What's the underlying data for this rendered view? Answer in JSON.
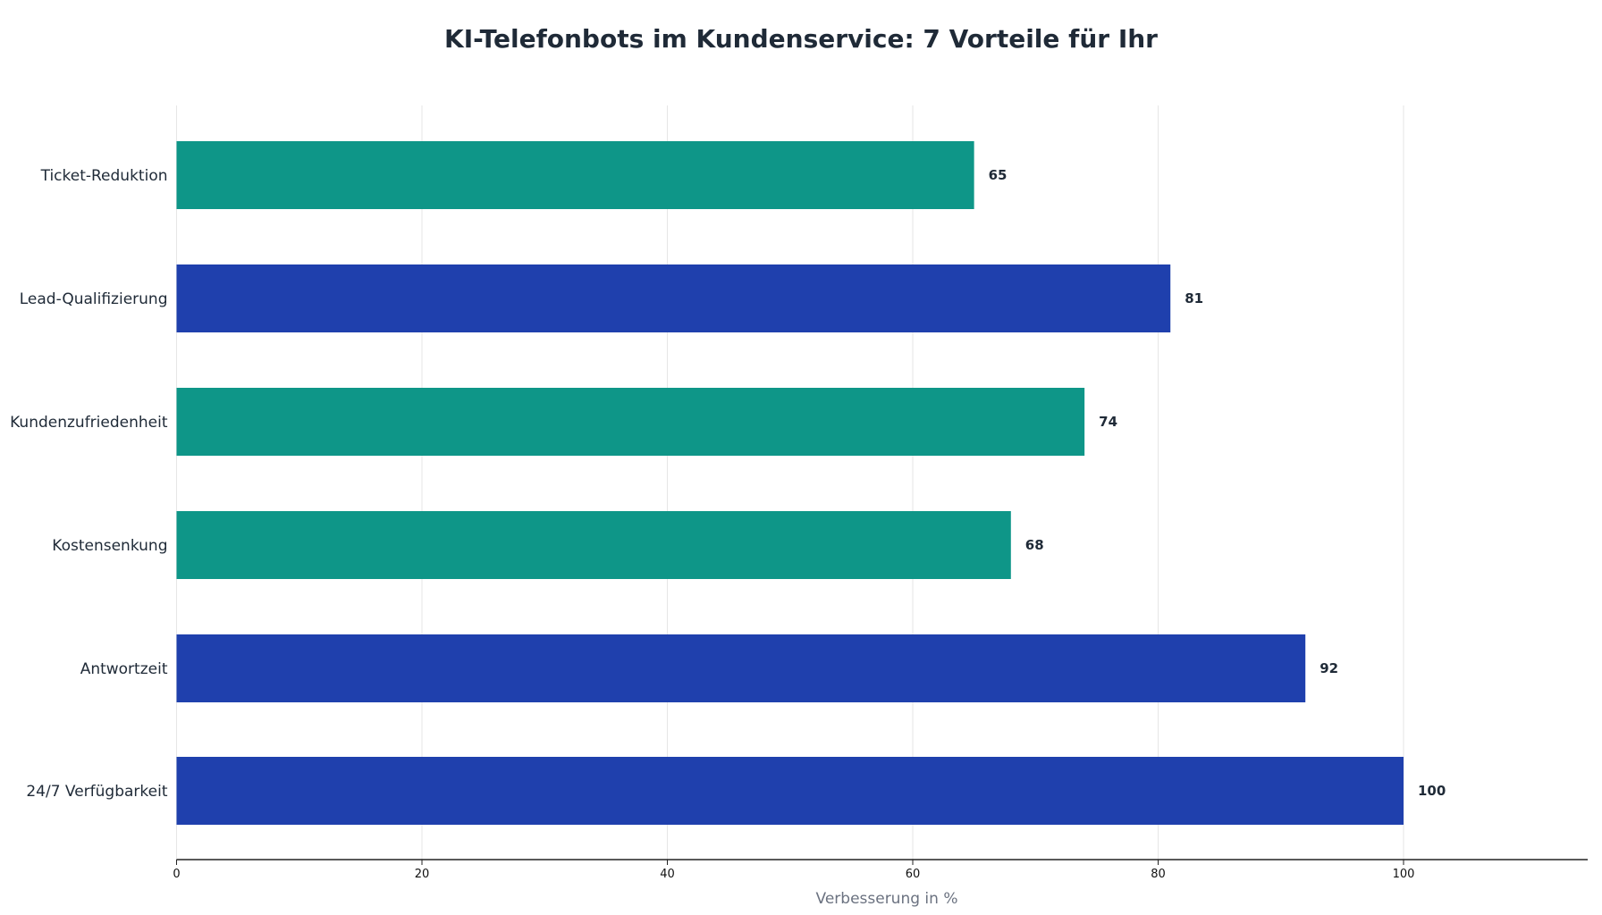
{
  "chart_data": {
    "type": "bar",
    "orientation": "horizontal",
    "title": "KI-Telefonbots im Kundenservice: 7 Vorteile für Ihr",
    "xlabel": "Verbesserung in %",
    "ylabel": "",
    "xlim": [
      0,
      115
    ],
    "xticks": [
      0,
      20,
      40,
      60,
      80,
      100
    ],
    "grid": "vertical",
    "categories": [
      "Ticket-Reduktion",
      "Lead-Qualifizierung",
      "Kundenzufriedenheit",
      "Kostensenkung",
      "Antwortzeit",
      "24/7 Verfügbarkeit"
    ],
    "values": [
      65,
      81,
      74,
      68,
      92,
      100
    ],
    "bar_colors": [
      "#0e9688",
      "#1f40ad",
      "#0e9688",
      "#0e9688",
      "#1f40ad",
      "#1f40ad"
    ],
    "data_labels": [
      "65",
      "81",
      "74",
      "68",
      "92",
      "100"
    ]
  }
}
